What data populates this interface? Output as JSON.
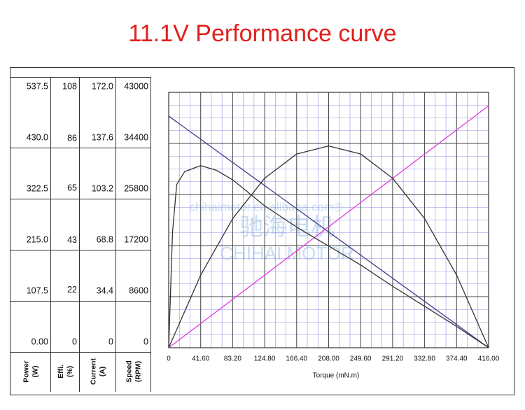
{
  "chart_data": {
    "type": "line",
    "title": "11.1V Performance curve",
    "x_label": "Torque (mN.m)",
    "xlim": [
      0,
      416
    ],
    "xticks": [
      0,
      {
        "value": 41.6,
        "label": "41.60"
      },
      {
        "value": 83.2,
        "label": "83.20"
      },
      {
        "value": 124.8,
        "label": "124.80"
      },
      {
        "value": 166.4,
        "label": "166.40"
      },
      {
        "value": 208,
        "label": "208.00"
      },
      {
        "value": 249.6,
        "label": "249.60"
      },
      {
        "value": 291.2,
        "label": "291.20"
      },
      {
        "value": 332.8,
        "label": "332.80"
      },
      {
        "value": 374.4,
        "label": "374.40"
      },
      {
        "value": 416,
        "label": "416.00"
      }
    ],
    "axes": [
      {
        "label": [
          "Power",
          "(W)"
        ],
        "ylim": [
          0,
          537.5
        ],
        "yticks": [
          {
            "value": 0,
            "label": "0.00"
          },
          107.5,
          {
            "value": 215,
            "label": "215.0"
          },
          322.5,
          {
            "value": 430,
            "label": "430.0"
          },
          537.5
        ]
      },
      {
        "label": [
          "Effi.",
          "(%)"
        ],
        "ylim": [
          0,
          108
        ],
        "yticks": [
          0,
          22,
          43,
          65,
          86,
          108
        ]
      },
      {
        "label": [
          "Current",
          "(A)"
        ],
        "ylim": [
          0,
          172
        ],
        "yticks": [
          0,
          34.4,
          68.8,
          103.2,
          137.6,
          {
            "value": 172,
            "label": "172.0"
          }
        ]
      },
      {
        "label": [
          "Speed",
          "(RPM)"
        ],
        "ylim": [
          0,
          43000
        ],
        "yticks": [
          0,
          8600,
          17200,
          25800,
          34400,
          43000
        ]
      }
    ],
    "grid": true,
    "series": [
      {
        "axis": 3,
        "color": "#3b3b8f",
        "x": [
          0,
          416
        ],
        "values": [
          39000,
          0
        ]
      },
      {
        "axis": 2,
        "color": "#e03ce0",
        "x": [
          0,
          416
        ],
        "values": [
          0,
          163
        ]
      },
      {
        "axis": 0,
        "color": "#333333",
        "x": [
          0,
          41.6,
          83.2,
          124.8,
          166.4,
          208,
          249.6,
          291.2,
          332.8,
          374.4,
          416
        ],
        "values": [
          0,
          152.9,
          271.8,
          356.8,
          407.8,
          424.7,
          407.8,
          356.8,
          271.8,
          152.9,
          0
        ]
      },
      {
        "axis": 1,
        "color": "#333333",
        "x": [
          0,
          5,
          10.4,
          20.8,
          41.6,
          62.4,
          83.2,
          124.8,
          166.4,
          208,
          249.6,
          291.2,
          332.8,
          374.4,
          416
        ],
        "values": [
          0,
          49,
          69,
          74.5,
          77,
          75,
          71,
          60,
          51,
          43,
          35,
          26,
          17.5,
          9,
          0
        ]
      }
    ],
    "watermark": [
      "chihaimotor.en.alibaba.com®",
      "驰海电机",
      "CHIHAI MOTOR"
    ]
  }
}
